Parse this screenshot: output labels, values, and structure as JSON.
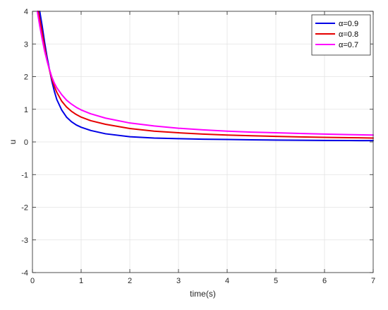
{
  "chart_data": {
    "type": "line",
    "xlabel": "time(s)",
    "ylabel": "u",
    "xlim": [
      0,
      7
    ],
    "ylim": [
      -4,
      4
    ],
    "x_ticks": [
      "0",
      "1",
      "2",
      "3",
      "4",
      "5",
      "6",
      "7"
    ],
    "y_ticks": [
      "-4",
      "-3",
      "-2",
      "-1",
      "0",
      "1",
      "2",
      "3",
      "4"
    ],
    "grid": true,
    "legend_position": "top-right",
    "series": [
      {
        "name": "α=0.9",
        "color": "#0000e6",
        "x": [
          0.15,
          0.2,
          0.25,
          0.3,
          0.35,
          0.4,
          0.45,
          0.5,
          0.6,
          0.7,
          0.8,
          0.9,
          1.0,
          1.2,
          1.5,
          2.0,
          2.5,
          3.0,
          3.5,
          4.0,
          4.5,
          5.0,
          5.5,
          6.0,
          6.5,
          7.0
        ],
        "values": [
          4.0,
          3.55,
          3.05,
          2.6,
          2.22,
          1.85,
          1.55,
          1.3,
          0.98,
          0.76,
          0.62,
          0.52,
          0.45,
          0.35,
          0.25,
          0.16,
          0.12,
          0.1,
          0.085,
          0.075,
          0.065,
          0.058,
          0.052,
          0.047,
          0.043,
          0.04
        ]
      },
      {
        "name": "α=0.8",
        "color": "#e60000",
        "x": [
          0.12,
          0.2,
          0.25,
          0.3,
          0.35,
          0.4,
          0.45,
          0.5,
          0.6,
          0.7,
          0.8,
          0.9,
          1.0,
          1.2,
          1.5,
          2.0,
          2.5,
          3.0,
          3.5,
          4.0,
          4.5,
          5.0,
          5.5,
          6.0,
          6.5,
          7.0
        ],
        "values": [
          4.0,
          3.35,
          2.9,
          2.5,
          2.2,
          1.92,
          1.7,
          1.52,
          1.25,
          1.07,
          0.94,
          0.84,
          0.76,
          0.65,
          0.54,
          0.41,
          0.33,
          0.28,
          0.24,
          0.21,
          0.19,
          0.17,
          0.155,
          0.14,
          0.13,
          0.12
        ]
      },
      {
        "name": "α=0.7",
        "color": "#ff00ff",
        "x": [
          0.1,
          0.15,
          0.2,
          0.25,
          0.3,
          0.35,
          0.4,
          0.45,
          0.5,
          0.6,
          0.7,
          0.8,
          0.9,
          1.0,
          1.2,
          1.5,
          2.0,
          2.5,
          3.0,
          3.5,
          4.0,
          4.5,
          5.0,
          5.5,
          6.0,
          6.5,
          7.0
        ],
        "values": [
          4.0,
          3.55,
          3.15,
          2.78,
          2.48,
          2.22,
          1.98,
          1.8,
          1.66,
          1.45,
          1.28,
          1.16,
          1.06,
          0.98,
          0.86,
          0.73,
          0.58,
          0.49,
          0.42,
          0.37,
          0.33,
          0.3,
          0.28,
          0.26,
          0.24,
          0.225,
          0.21
        ]
      }
    ]
  }
}
